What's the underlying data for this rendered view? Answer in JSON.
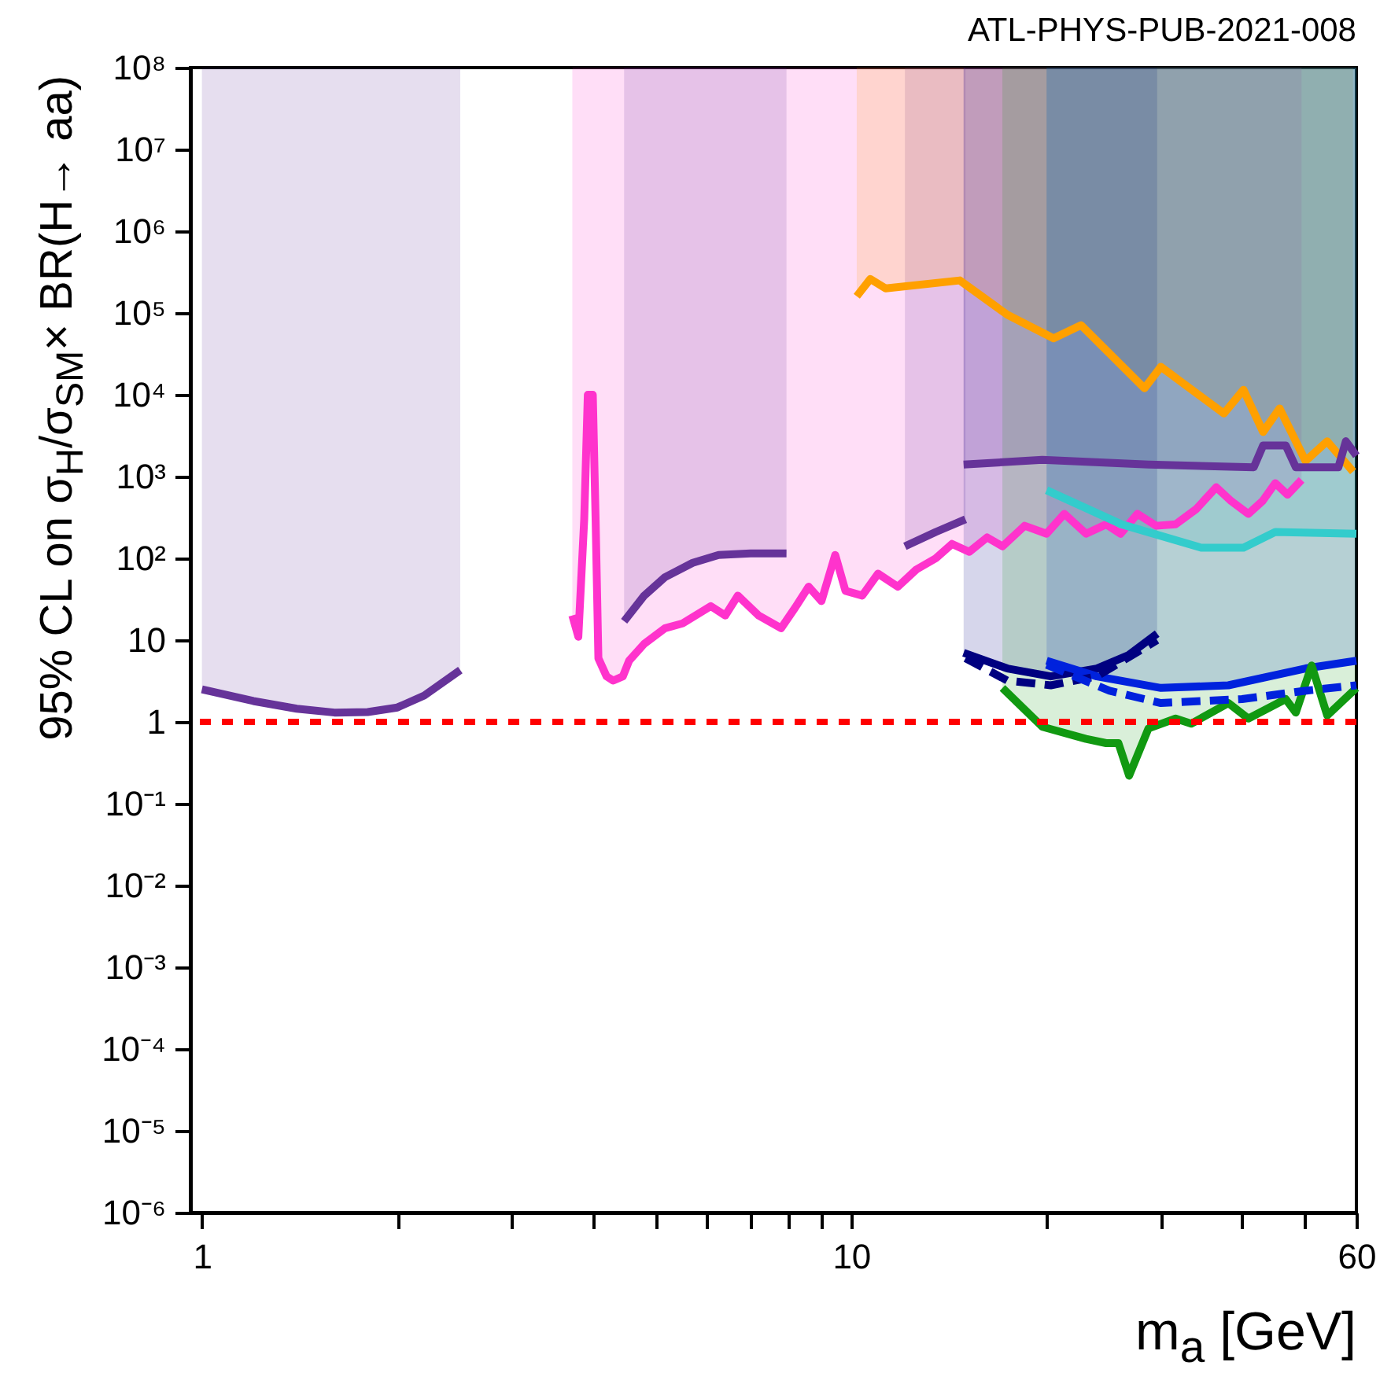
{
  "chart_data": {
    "type": "line",
    "xlabel": "m$_{a}$ [GeV]",
    "ylabel": "95% CL on σ$_{H}$/σ$_{SM}$× BR(H→ aa)",
    "annotations": [
      "ATL-PHYS-PUB-2021-008"
    ],
    "log": "xy",
    "xlim": [
      0.96,
      60
    ],
    "ylim": [
      1e-06,
      100000000
    ],
    "xticks": [
      1,
      {
        "value": 2,
        "label": null
      },
      {
        "value": 3,
        "label": null
      },
      {
        "value": 4,
        "label": null
      },
      {
        "value": 5,
        "label": null
      },
      {
        "value": 6,
        "label": null
      },
      {
        "value": 7,
        "label": null
      },
      {
        "value": 8,
        "label": null
      },
      {
        "value": 9,
        "label": null
      },
      10,
      {
        "value": 20,
        "label": null
      },
      {
        "value": 30,
        "label": null
      },
      {
        "value": 40,
        "label": null
      },
      {
        "value": 50,
        "label": null
      },
      60
    ],
    "yticks": [
      {
        "value": 1e-06,
        "label": "10⁻⁶"
      },
      {
        "value": 1e-05,
        "label": "10⁻⁵"
      },
      {
        "value": 0.0001,
        "label": "10⁻⁴"
      },
      {
        "value": 0.001,
        "label": "10⁻³"
      },
      {
        "value": 0.01,
        "label": "10⁻²"
      },
      {
        "value": 0.1,
        "label": "10⁻¹"
      },
      1,
      10,
      {
        "value": 100,
        "label": "10²"
      },
      {
        "value": 1000,
        "label": "10³"
      },
      {
        "value": 10000,
        "label": "10⁴"
      },
      {
        "value": 100000,
        "label": "10⁵"
      },
      {
        "value": 1000000,
        "label": "10⁶"
      },
      {
        "value": 10000000,
        "label": "10⁷"
      },
      {
        "value": 100000000,
        "label": "10⁸"
      }
    ],
    "ref_lines": [
      {
        "axis": "y",
        "value": 1,
        "color": "#ff0000",
        "line_style": "dotted"
      }
    ],
    "series": [
      {
        "color": "#663399",
        "x": [
          1,
          1.2,
          1.4,
          1.6,
          1.8,
          2.0,
          2.2,
          2.5
        ],
        "values": [
          2.5,
          1.8,
          1.45,
          1.3,
          1.32,
          1.5,
          2.1,
          4.3
        ],
        "lower": [
          2.5,
          1.8,
          1.45,
          1.3,
          1.32,
          1.5,
          2.1,
          4.3
        ],
        "upper": [
          100000000,
          100000000,
          100000000,
          100000000,
          100000000,
          100000000,
          100000000,
          100000000
        ]
      },
      {
        "color": "#ff33cc",
        "x": [
          3.72,
          3.8,
          3.88,
          3.93,
          4.0,
          4.04,
          4.08,
          4.2,
          4.3,
          4.45,
          4.55,
          4.8,
          5.17,
          5.5,
          6.08,
          6.4,
          6.69,
          7.2,
          7.8,
          8.2,
          8.6,
          9.0,
          9.45,
          9.8,
          10.4,
          11.0,
          11.8,
          12.6,
          13.5,
          14.3,
          15.2,
          16.2,
          17.1,
          18.5,
          20,
          21.3,
          23,
          24.7,
          26,
          27.6,
          29.5,
          31.6,
          34,
          36.5,
          38.5,
          40.9,
          43,
          45,
          47,
          49.4
        ],
        "values": [
          20,
          11,
          300,
          10000,
          10000,
          300,
          6,
          3.6,
          3.2,
          3.6,
          5.6,
          9,
          14,
          16,
          26,
          20,
          35,
          20,
          14,
          25,
          45,
          30,
          110,
          40,
          35,
          65,
          45,
          73,
          100,
          150,
          120,
          180,
          140,
          250,
          200,
          350,
          200,
          260,
          200,
          350,
          250,
          260,
          400,
          740,
          500,
          350,
          500,
          830,
          600,
          910
        ],
        "lower": [
          20,
          11,
          300,
          10000,
          10000,
          300,
          6,
          3.6,
          3.2,
          3.6,
          5.6,
          9,
          14,
          16,
          26,
          20,
          35,
          20,
          14,
          25,
          45,
          30,
          110,
          40,
          35,
          65,
          45,
          73,
          100,
          150,
          120,
          180,
          140,
          250,
          200,
          350,
          200,
          260,
          200,
          350,
          250,
          260,
          400,
          740,
          500,
          350,
          500,
          830,
          600,
          910
        ],
        "upper": [
          100000000,
          100000000,
          100000000,
          100000000,
          100000000,
          100000000,
          100000000,
          100000000,
          100000000,
          100000000,
          100000000,
          100000000,
          100000000,
          100000000,
          100000000,
          100000000,
          100000000,
          100000000,
          100000000,
          100000000,
          100000000,
          100000000,
          100000000,
          100000000,
          100000000,
          100000000,
          100000000,
          100000000,
          100000000,
          100000000,
          100000000,
          100000000,
          100000000,
          100000000,
          100000000,
          100000000,
          100000000,
          100000000,
          100000000,
          100000000,
          100000000,
          100000000,
          100000000,
          100000000,
          100000000,
          100000000,
          100000000,
          100000000,
          100000000,
          100000000
        ]
      },
      {
        "color": "#663399",
        "x": [
          4.47,
          4.8,
          5.17,
          5.7,
          6.25,
          7.0,
          7.95,
          10,
          12.1,
          13.5,
          15
        ],
        "values": [
          17,
          35,
          59,
          88,
          110,
          115,
          115,
          null,
          140,
          210,
          300
        ],
        "lower": [
          17,
          35,
          59,
          88,
          110,
          115,
          115,
          null,
          140,
          210,
          300
        ],
        "upper": [
          100000000,
          100000000,
          100000000,
          100000000,
          100000000,
          100000000,
          100000000,
          null,
          100000000,
          100000000,
          100000000
        ]
      },
      {
        "color": "#ffa000",
        "x": [
          10.2,
          10.7,
          11.3,
          14.7,
          17.4,
          20.5,
          22.6,
          28.3,
          30,
          37.5,
          40.2,
          43.1,
          45.7,
          50.1,
          54.1,
          59.3
        ],
        "values": [
          160000,
          260000,
          200000,
          250000,
          95000,
          49000,
          71000,
          12000,
          22000,
          5900,
          11500,
          3500,
          6800,
          1550,
          2700,
          1150
        ],
        "lower": [
          160000,
          260000,
          200000,
          250000,
          95000,
          49000,
          71000,
          12000,
          22000,
          5900,
          11500,
          3500,
          6800,
          1550,
          2700,
          1150
        ],
        "upper": [
          100000000,
          100000000,
          100000000,
          100000000,
          100000000,
          100000000,
          100000000,
          100000000,
          100000000,
          100000000,
          100000000,
          100000000,
          100000000,
          100000000,
          100000000,
          100000000
        ]
      },
      {
        "color": "#663399",
        "x": [
          14.9,
          19.7,
          28.7,
          41.7,
          43.1,
          46.7,
          48.4,
          56.3,
          57.8,
          60
        ],
        "values": [
          1400,
          1600,
          1400,
          1300,
          2400,
          2400,
          1300,
          1300,
          2700,
          1800
        ],
        "lower": [
          1400,
          1600,
          1400,
          1300,
          2400,
          2400,
          1300,
          1300,
          2700,
          1800
        ],
        "upper": [
          100000000,
          100000000,
          100000000,
          100000000,
          100000000,
          100000000,
          100000000,
          100000000,
          100000000,
          100000000
        ]
      },
      {
        "color": "#33cccc",
        "x": [
          20,
          26.1,
          34.6,
          40.2,
          45,
          60
        ],
        "values": [
          680,
          260,
          135,
          135,
          210,
          200
        ],
        "lower": [
          680,
          260,
          135,
          135,
          210,
          200
        ],
        "upper": [
          100000000,
          100000000,
          100000000,
          100000000,
          100000000,
          100000000
        ]
      },
      {
        "color": "#000080",
        "x": [
          14.9,
          17.4,
          20.3,
          23.9,
          26.7,
          29.6
        ],
        "values": [
          7,
          4.5,
          3.6,
          4.5,
          6.5,
          12
        ],
        "lower": [
          7,
          4.5,
          3.6,
          4.5,
          6.5,
          12
        ],
        "upper": [
          100000000,
          100000000,
          100000000,
          100000000,
          100000000,
          100000000
        ]
      },
      {
        "color": "#0022dd",
        "x": [
          20,
          23.9,
          30,
          38.1,
          50.1,
          60
        ],
        "values": [
          5.6,
          3.6,
          2.6,
          2.8,
          4.5,
          5.6
        ],
        "lower": [
          5.6,
          3.6,
          2.6,
          2.8,
          4.5,
          5.6
        ],
        "upper": [
          100000000,
          100000000,
          100000000,
          100000000,
          100000000,
          100000000
        ]
      },
      {
        "color": "#119911",
        "x": [
          17.1,
          19.7,
          23,
          24.7,
          25.8,
          26.8,
          28.7,
          31.6,
          33.4,
          38.1,
          40.9,
          46.7,
          48.4,
          51.2,
          54.1,
          60
        ],
        "values": [
          2.6,
          0.87,
          0.62,
          0.55,
          0.55,
          0.22,
          0.83,
          1.1,
          0.95,
          1.7,
          1.1,
          1.9,
          1.3,
          4.9,
          1.2,
          2.6
        ],
        "lower": [
          2.6,
          0.87,
          0.62,
          0.55,
          0.55,
          0.22,
          0.83,
          1.1,
          0.95,
          1.7,
          1.1,
          1.9,
          1.3,
          4.9,
          1.2,
          2.6
        ],
        "upper": [
          100000000,
          100000000,
          100000000,
          100000000,
          100000000,
          100000000,
          100000000,
          100000000,
          100000000,
          100000000,
          100000000,
          100000000,
          100000000,
          100000000,
          100000000,
          100000000
        ]
      },
      {
        "color": "#000080",
        "line_style": "dashed",
        "x": [
          15,
          17.4,
          20.3,
          23.9,
          29.6
        ],
        "values": [
          6,
          3.2,
          2.8,
          3.6,
          10
        ]
      },
      {
        "color": "#0022dd",
        "line_style": "dashed",
        "x": [
          20,
          25,
          30,
          40,
          50,
          60
        ],
        "values": [
          5,
          2.4,
          1.7,
          1.9,
          2.4,
          2.8
        ]
      }
    ]
  }
}
